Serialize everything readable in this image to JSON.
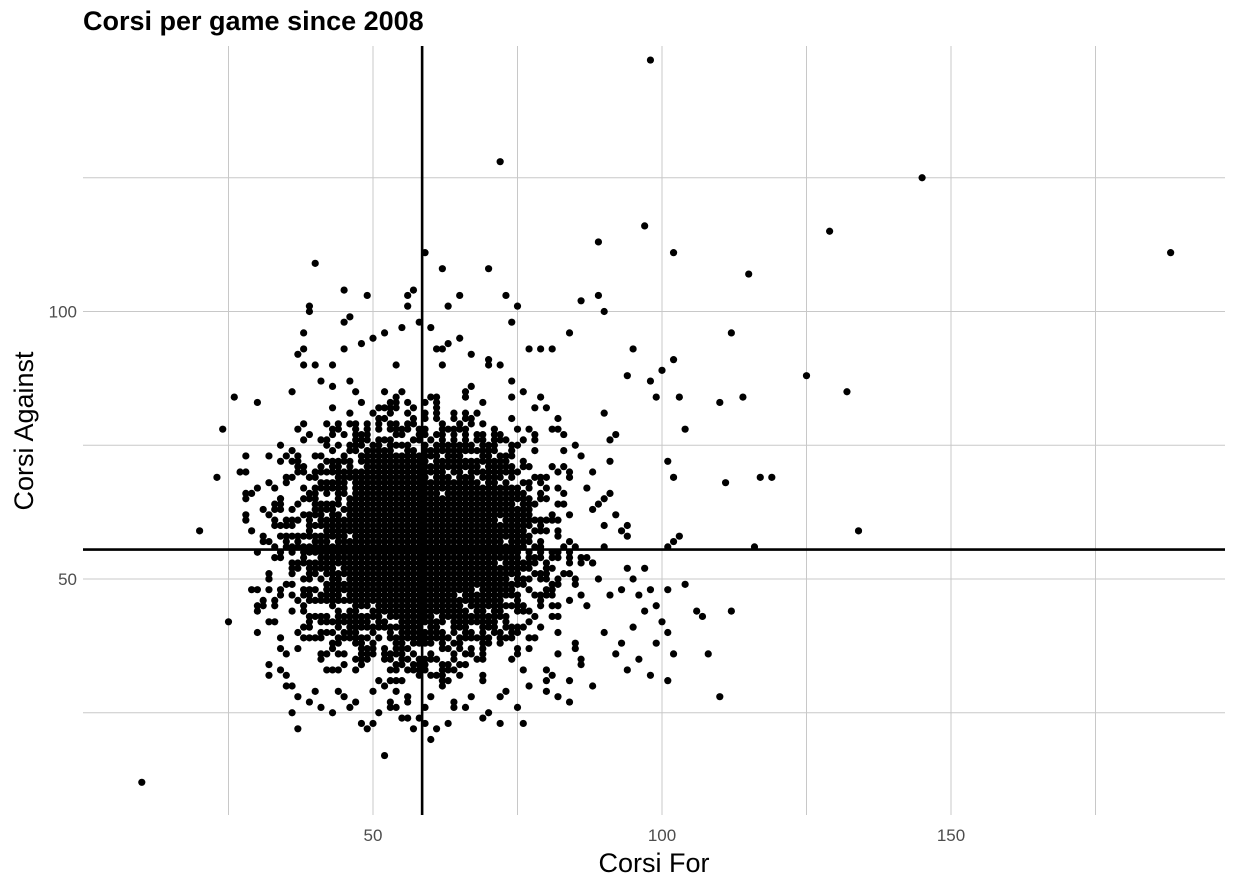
{
  "chart_data": {
    "type": "scatter",
    "title": "Corsi per game since 2008",
    "xlabel": "Corsi For",
    "ylabel": "Corsi Against",
    "xlim": [
      0,
      197
    ],
    "ylim": [
      7,
      150
    ],
    "x_ticks": [
      50,
      100,
      150
    ],
    "y_ticks": [
      50,
      100
    ],
    "x_minor_grid": [
      25,
      75,
      125,
      175
    ],
    "y_minor_grid": [
      25,
      75,
      125
    ],
    "grid": true,
    "legend": "none",
    "point_color": "#000000",
    "reference_lines": {
      "vline_x": 58.5,
      "hline_y": 55.5
    },
    "dense_cloud": {
      "x_center": 58,
      "y_center": 57,
      "x_sd": 10,
      "y_sd": 10,
      "approx_count": 5000,
      "note": "integer-valued points forming a dense central cloud"
    },
    "points": [
      [
        10,
        12
      ],
      [
        26,
        84
      ],
      [
        27,
        70
      ],
      [
        28,
        73
      ],
      [
        28,
        62
      ],
      [
        30,
        83
      ],
      [
        31,
        63
      ],
      [
        31,
        57
      ],
      [
        32,
        50
      ],
      [
        32,
        34
      ],
      [
        32,
        32
      ],
      [
        33,
        67
      ],
      [
        33,
        42
      ],
      [
        34,
        47
      ],
      [
        34,
        65
      ],
      [
        98,
        147
      ],
      [
        72,
        128
      ],
      [
        97,
        116
      ],
      [
        89,
        113
      ],
      [
        102,
        111
      ],
      [
        115,
        107
      ],
      [
        129,
        115
      ],
      [
        145,
        125
      ],
      [
        188,
        111
      ],
      [
        125,
        88
      ],
      [
        132,
        85
      ],
      [
        134,
        59
      ],
      [
        112,
        96
      ],
      [
        117,
        69
      ],
      [
        119,
        69
      ],
      [
        116,
        56
      ],
      [
        114,
        84
      ],
      [
        110,
        83
      ],
      [
        112,
        44
      ],
      [
        111,
        68
      ],
      [
        110,
        28
      ],
      [
        107,
        43
      ],
      [
        104,
        78
      ],
      [
        103,
        84
      ],
      [
        102,
        91
      ],
      [
        101,
        72
      ],
      [
        102,
        69
      ],
      [
        101,
        56
      ],
      [
        103,
        58
      ],
      [
        102,
        57
      ],
      [
        100,
        89
      ],
      [
        99,
        84
      ],
      [
        98,
        87
      ],
      [
        95,
        93
      ],
      [
        94,
        88
      ],
      [
        92,
        77
      ],
      [
        91,
        76
      ],
      [
        90,
        81
      ],
      [
        91,
        72
      ],
      [
        90,
        100
      ],
      [
        89,
        103
      ],
      [
        86,
        102
      ],
      [
        84,
        96
      ],
      [
        81,
        93
      ],
      [
        79,
        93
      ],
      [
        77,
        93
      ],
      [
        75,
        101
      ],
      [
        73,
        103
      ],
      [
        74,
        98
      ],
      [
        70,
        108
      ],
      [
        65,
        103
      ],
      [
        63,
        101
      ],
      [
        62,
        108
      ],
      [
        61,
        93
      ],
      [
        62,
        90
      ],
      [
        59,
        111
      ],
      [
        57,
        104
      ],
      [
        56,
        103
      ],
      [
        56,
        101
      ],
      [
        49,
        103
      ],
      [
        45,
        104
      ],
      [
        46,
        99
      ],
      [
        45,
        98
      ],
      [
        40,
        109
      ],
      [
        39,
        101
      ],
      [
        39,
        100
      ],
      [
        38,
        96
      ],
      [
        37,
        92
      ],
      [
        38,
        90
      ],
      [
        36,
        85
      ],
      [
        97,
        52
      ],
      [
        98,
        48
      ],
      [
        97,
        44
      ],
      [
        99,
        45
      ],
      [
        100,
        42
      ],
      [
        101,
        40
      ],
      [
        99,
        38
      ],
      [
        96,
        47
      ],
      [
        95,
        50
      ],
      [
        94,
        52
      ],
      [
        93,
        48
      ],
      [
        95,
        41
      ],
      [
        93,
        38
      ],
      [
        92,
        36
      ],
      [
        94,
        33
      ],
      [
        96,
        35
      ],
      [
        98,
        32
      ],
      [
        101,
        31
      ],
      [
        102,
        36
      ],
      [
        104,
        49
      ],
      [
        106,
        44
      ],
      [
        108,
        36
      ],
      [
        90,
        56
      ],
      [
        92,
        62
      ],
      [
        93,
        59
      ],
      [
        91,
        66
      ],
      [
        89,
        64
      ],
      [
        90,
        60
      ],
      [
        88,
        30
      ],
      [
        84,
        31
      ],
      [
        80,
        29
      ],
      [
        77,
        30
      ],
      [
        75,
        26
      ],
      [
        73,
        29
      ],
      [
        72,
        28
      ],
      [
        70,
        25
      ],
      [
        69,
        24
      ],
      [
        66,
        26
      ],
      [
        63,
        23
      ],
      [
        61,
        22
      ],
      [
        60,
        20
      ],
      [
        58,
        24
      ],
      [
        57,
        22
      ],
      [
        56,
        24
      ],
      [
        54,
        26
      ],
      [
        53,
        27
      ],
      [
        51,
        25
      ],
      [
        50,
        23
      ],
      [
        49,
        22
      ],
      [
        46,
        26
      ],
      [
        43,
        25
      ],
      [
        41,
        26
      ],
      [
        40,
        29
      ],
      [
        39,
        27
      ],
      [
        37,
        28
      ],
      [
        37,
        22
      ],
      [
        35,
        36
      ],
      [
        34,
        33
      ],
      [
        35,
        30
      ],
      [
        36,
        25
      ],
      [
        72,
        23
      ],
      [
        76,
        23
      ],
      [
        67,
        28
      ],
      [
        80,
        33
      ],
      [
        82,
        28
      ],
      [
        86,
        34
      ],
      [
        85,
        38
      ],
      [
        87,
        45
      ],
      [
        88,
        53
      ],
      [
        89,
        50
      ],
      [
        82,
        80
      ],
      [
        80,
        82
      ],
      [
        83,
        77
      ],
      [
        84,
        70
      ],
      [
        86,
        73
      ],
      [
        87,
        67
      ],
      [
        88,
        70
      ],
      [
        85,
        75
      ],
      [
        81,
        78
      ],
      [
        79,
        84
      ],
      [
        78,
        82
      ],
      [
        76,
        85
      ],
      [
        74,
        87
      ],
      [
        72,
        90
      ],
      [
        70,
        91
      ],
      [
        67,
        92
      ],
      [
        65,
        95
      ],
      [
        63,
        94
      ],
      [
        60,
        97
      ],
      [
        58,
        98
      ],
      [
        55,
        97
      ],
      [
        52,
        96
      ],
      [
        50,
        95
      ],
      [
        48,
        94
      ],
      [
        45,
        93
      ],
      [
        43,
        90
      ],
      [
        41,
        87
      ],
      [
        40,
        90
      ]
    ]
  }
}
